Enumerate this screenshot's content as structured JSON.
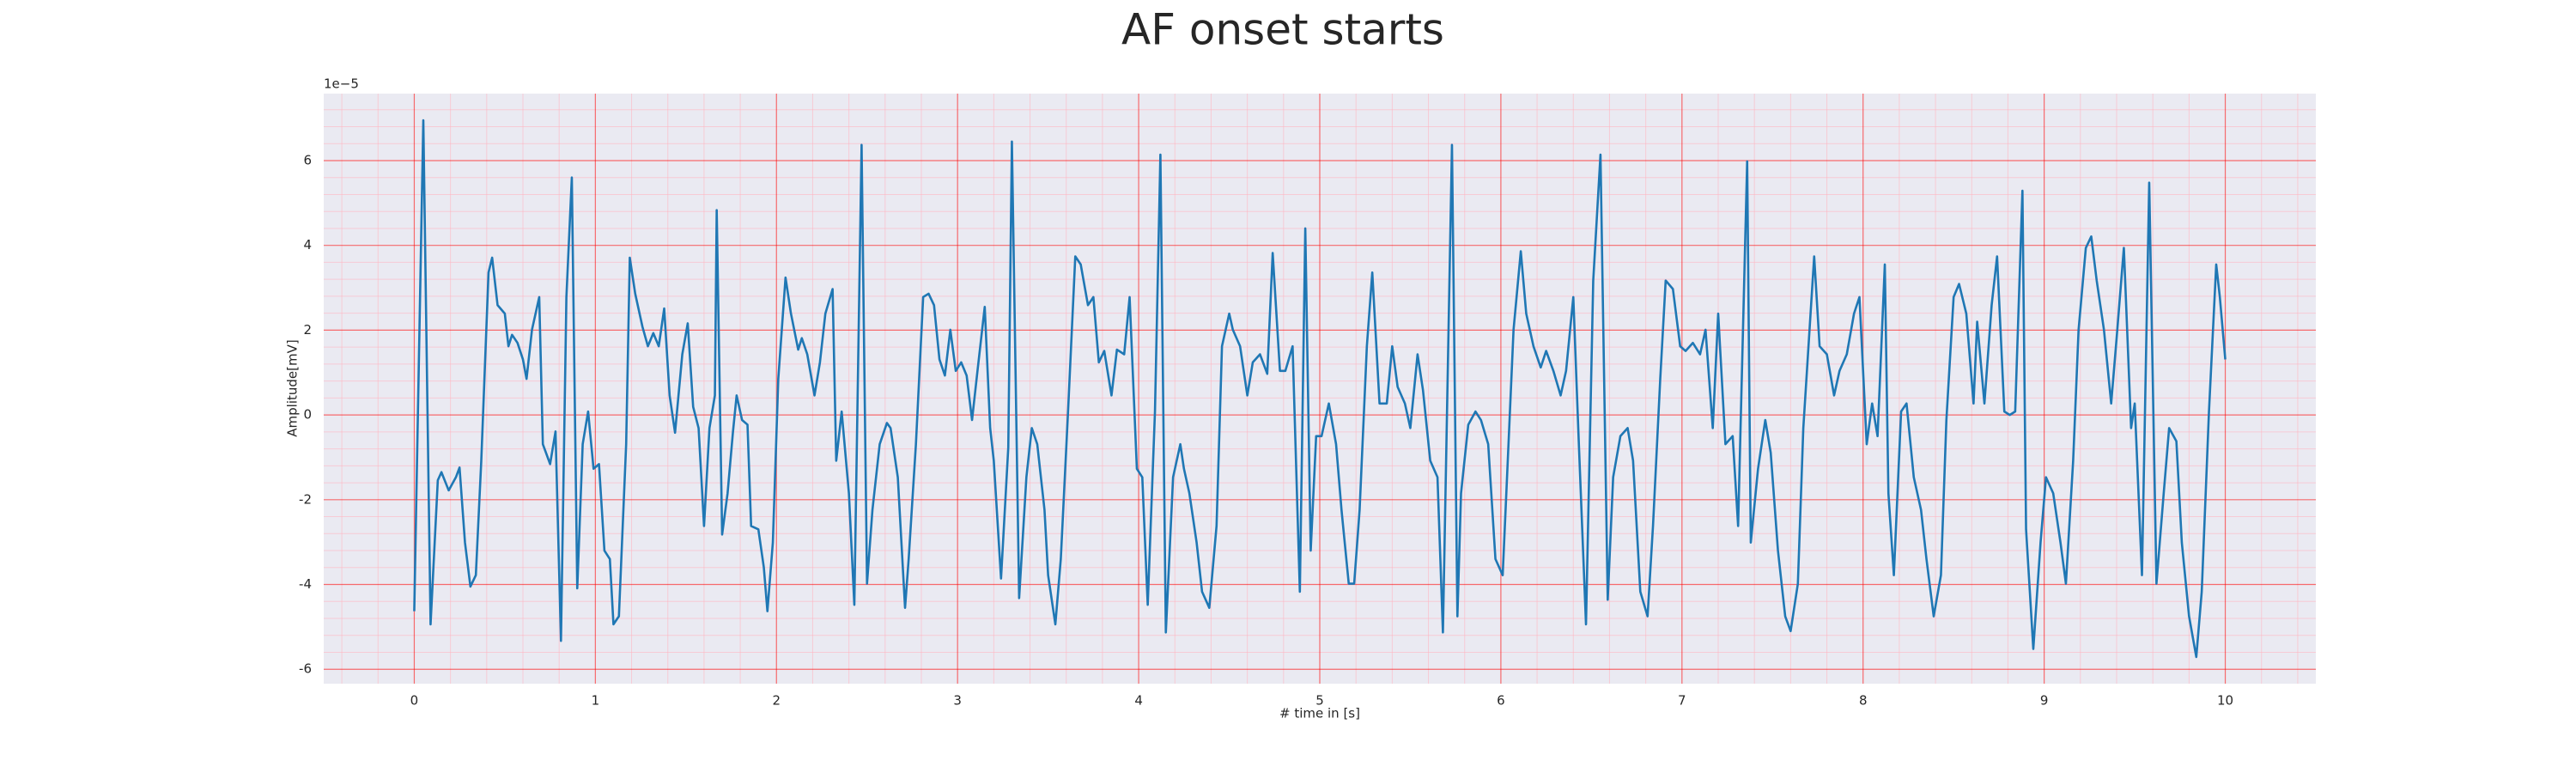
{
  "chart_data": {
    "type": "line",
    "title": "AF onset starts",
    "xlabel": "# time in [s]",
    "ylabel": "Amplitude[mV]",
    "y_offset_label": "1e−5",
    "color": "#1f77b4",
    "background": "#eaeaf2",
    "grid": true,
    "grid_color": "#ff0000",
    "minor_grid": true,
    "minor_grid_color": "#ffb6c1",
    "xlim": [
      -0.5,
      10.5
    ],
    "ylim": [
      -6.34,
      7.58
    ],
    "xticks": [
      0,
      1,
      2,
      3,
      4,
      5,
      6,
      7,
      8,
      9,
      10
    ],
    "yticks": [
      -6,
      -4,
      -2,
      0,
      2,
      4,
      6
    ],
    "xminorticks": [
      -0.4,
      -0.2,
      0.2,
      0.4,
      0.6,
      0.8,
      1.2,
      1.4,
      1.6,
      1.8,
      2.2,
      2.4,
      2.6,
      2.8,
      3.2,
      3.4,
      3.6,
      3.8,
      4.2,
      4.4,
      4.6,
      4.8,
      5.2,
      5.4,
      5.6,
      5.8,
      6.2,
      6.4,
      6.6,
      6.8,
      7.2,
      7.4,
      7.6,
      7.8,
      8.2,
      8.4,
      8.6,
      8.8,
      9.2,
      9.4,
      9.6,
      9.8,
      10.2,
      10.4
    ],
    "yminorticks": [
      -5.6,
      -5.2,
      -4.8,
      -4.4,
      -3.6,
      -3.2,
      -2.8,
      -2.4,
      -1.6,
      -1.2,
      -0.8,
      -0.4,
      0.4,
      0.8,
      1.2,
      1.6,
      2.4,
      2.8,
      3.2,
      3.6,
      4.4,
      4.8,
      5.2,
      5.6,
      6.4,
      6.8,
      7.2
    ],
    "x": [
      0.0,
      0.05,
      0.09,
      0.13,
      0.15,
      0.19,
      0.23,
      0.25,
      0.28,
      0.31,
      0.34,
      0.37,
      0.41,
      0.43,
      0.46,
      0.5,
      0.52,
      0.54,
      0.57,
      0.6,
      0.62,
      0.65,
      0.69,
      0.71,
      0.75,
      0.78,
      0.81,
      0.84,
      0.87,
      0.9,
      0.93,
      0.96,
      0.99,
      1.02,
      1.05,
      1.08,
      1.1,
      1.13,
      1.17,
      1.19,
      1.22,
      1.26,
      1.29,
      1.32,
      1.35,
      1.38,
      1.41,
      1.44,
      1.48,
      1.51,
      1.54,
      1.57,
      1.6,
      1.63,
      1.66,
      1.67,
      1.7,
      1.73,
      1.76,
      1.78,
      1.81,
      1.84,
      1.86,
      1.9,
      1.93,
      1.95,
      1.98,
      2.01,
      2.05,
      2.08,
      2.12,
      2.14,
      2.17,
      2.21,
      2.24,
      2.27,
      2.31,
      2.33,
      2.36,
      2.4,
      2.43,
      2.47,
      2.5,
      2.53,
      2.57,
      2.61,
      2.63,
      2.67,
      2.71,
      2.73,
      2.77,
      2.81,
      2.84,
      2.87,
      2.9,
      2.93,
      2.96,
      2.99,
      3.02,
      3.05,
      3.08,
      3.11,
      3.15,
      3.18,
      3.2,
      3.24,
      3.28,
      3.3,
      3.34,
      3.38,
      3.41,
      3.44,
      3.48,
      3.5,
      3.54,
      3.57,
      3.61,
      3.65,
      3.68,
      3.72,
      3.75,
      3.78,
      3.81,
      3.85,
      3.88,
      3.92,
      3.95,
      3.99,
      4.02,
      4.05,
      4.09,
      4.12,
      4.15,
      4.19,
      4.23,
      4.25,
      4.28,
      4.32,
      4.35,
      4.39,
      4.43,
      4.46,
      4.5,
      4.52,
      4.56,
      4.6,
      4.63,
      4.67,
      4.71,
      4.74,
      4.78,
      4.81,
      4.85,
      4.89,
      4.92,
      4.95,
      4.98,
      5.01,
      5.05,
      5.09,
      5.12,
      5.16,
      5.19,
      5.22,
      5.26,
      5.29,
      5.33,
      5.37,
      5.4,
      5.43,
      5.47,
      5.5,
      5.54,
      5.57,
      5.61,
      5.65,
      5.68,
      5.73,
      5.76,
      5.78,
      5.82,
      5.86,
      5.89,
      5.93,
      5.97,
      6.01,
      6.04,
      6.07,
      6.11,
      6.14,
      6.18,
      6.22,
      6.25,
      6.29,
      6.33,
      6.36,
      6.4,
      6.43,
      6.47,
      6.51,
      6.55,
      6.59,
      6.62,
      6.66,
      6.7,
      6.73,
      6.77,
      6.81,
      6.84,
      6.88,
      6.91,
      6.95,
      6.99,
      7.02,
      7.06,
      7.1,
      7.13,
      7.17,
      7.2,
      7.24,
      7.28,
      7.31,
      7.36,
      7.38,
      7.42,
      7.46,
      7.49,
      7.53,
      7.57,
      7.6,
      7.64,
      7.67,
      7.73,
      7.76,
      7.8,
      7.84,
      7.87,
      7.91,
      7.95,
      7.98,
      8.02,
      8.05,
      8.08,
      8.12,
      8.14,
      8.17,
      8.21,
      8.24,
      8.28,
      8.32,
      8.35,
      8.39,
      8.43,
      8.46,
      8.5,
      8.53,
      8.57,
      8.61,
      8.63,
      8.67,
      8.71,
      8.74,
      8.78,
      8.81,
      8.84,
      8.88,
      8.9,
      8.94,
      8.98,
      9.01,
      9.05,
      9.09,
      9.12,
      9.16,
      9.19,
      9.23,
      9.26,
      9.29,
      9.33,
      9.37,
      9.4,
      9.44,
      9.48,
      9.5,
      9.54,
      9.58,
      9.62,
      9.66,
      9.69,
      9.73,
      9.76,
      9.8,
      9.84,
      9.87,
      9.91,
      9.95,
      9.97,
      10.0
    ],
    "values": [
      -4.63,
      6.95,
      -4.94,
      -1.54,
      -1.35,
      -1.78,
      -1.47,
      -1.24,
      -3.01,
      -4.05,
      -3.78,
      -1.08,
      3.36,
      3.71,
      2.59,
      2.39,
      1.62,
      1.89,
      1.7,
      1.31,
      0.85,
      2.01,
      2.78,
      -0.69,
      -1.16,
      -0.39,
      -5.33,
      2.78,
      5.6,
      -4.09,
      -0.69,
      0.08,
      -1.27,
      -1.16,
      -3.2,
      -3.4,
      -4.94,
      -4.75,
      -0.69,
      3.71,
      2.86,
      2.08,
      1.62,
      1.93,
      1.62,
      2.51,
      0.46,
      -0.42,
      1.43,
      2.16,
      0.19,
      -0.31,
      -2.62,
      -0.31,
      0.46,
      4.83,
      -2.82,
      -1.85,
      -0.39,
      0.46,
      -0.12,
      -0.23,
      -2.62,
      -2.7,
      -3.59,
      -4.63,
      -3.01,
      0.85,
      3.24,
      2.39,
      1.54,
      1.81,
      1.43,
      0.46,
      1.24,
      2.39,
      2.97,
      -1.08,
      0.08,
      -1.85,
      -4.48,
      6.37,
      -3.98,
      -2.24,
      -0.69,
      -0.19,
      -0.31,
      -1.47,
      -4.55,
      -3.4,
      -0.69,
      2.78,
      2.86,
      2.59,
      1.31,
      0.93,
      2.01,
      1.04,
      1.24,
      0.93,
      -0.12,
      1.04,
      2.55,
      -0.31,
      -1.08,
      -3.86,
      -0.77,
      6.45,
      -4.32,
      -1.47,
      -0.31,
      -0.69,
      -2.24,
      -3.78,
      -4.94,
      -3.4,
      0.08,
      3.74,
      3.55,
      2.59,
      2.78,
      1.24,
      1.51,
      0.46,
      1.54,
      1.43,
      2.78,
      -1.27,
      -1.47,
      -4.48,
      0.08,
      6.14,
      -5.13,
      -1.47,
      -0.69,
      -1.27,
      -1.85,
      -3.01,
      -4.17,
      -4.55,
      -2.62,
      1.62,
      2.39,
      2.01,
      1.62,
      0.46,
      1.24,
      1.43,
      0.97,
      3.82,
      1.04,
      1.04,
      1.62,
      -4.17,
      4.4,
      -3.2,
      -0.5,
      -0.5,
      0.27,
      -0.69,
      -2.24,
      -3.98,
      -3.98,
      -2.24,
      1.62,
      3.36,
      0.27,
      0.27,
      1.62,
      0.66,
      0.27,
      -0.31,
      1.43,
      0.58,
      -1.08,
      -1.47,
      -5.13,
      6.37,
      -4.75,
      -1.85,
      -0.23,
      0.08,
      -0.12,
      -0.69,
      -3.4,
      -3.78,
      -0.89,
      2.01,
      3.86,
      2.39,
      1.62,
      1.12,
      1.51,
      1.04,
      0.46,
      1.04,
      2.78,
      -0.62,
      -4.94,
      3.17,
      6.14,
      -4.36,
      -1.47,
      -0.5,
      -0.31,
      -1.08,
      -4.17,
      -4.75,
      -2.62,
      0.85,
      3.17,
      2.97,
      1.62,
      1.51,
      1.7,
      1.43,
      2.01,
      -0.31,
      2.39,
      -0.69,
      -0.5,
      -2.62,
      5.98,
      -3.01,
      -1.27,
      -0.12,
      -0.89,
      -3.2,
      -4.75,
      -5.1,
      -3.98,
      -0.31,
      3.74,
      1.62,
      1.43,
      0.46,
      1.04,
      1.43,
      2.39,
      2.78,
      -0.69,
      0.27,
      -0.5,
      3.55,
      -1.85,
      -3.78,
      0.08,
      0.27,
      -1.47,
      -2.24,
      -3.4,
      -4.75,
      -3.78,
      -0.12,
      2.78,
      3.09,
      2.39,
      0.27,
      2.2,
      0.27,
      2.59,
      3.74,
      0.08,
      0.0,
      0.08,
      5.29,
      -2.7,
      -5.52,
      -3.01,
      -1.47,
      -1.85,
      -3.01,
      -3.98,
      -1.08,
      2.01,
      3.94,
      4.21,
      3.17,
      2.01,
      0.27,
      1.81,
      3.94,
      -0.31,
      0.27,
      -3.78,
      5.48,
      -3.98,
      -1.85,
      -0.31,
      -0.62,
      -3.01,
      -4.75,
      -5.71,
      -4.17,
      0.08,
      3.55,
      2.78,
      1.31
    ]
  }
}
